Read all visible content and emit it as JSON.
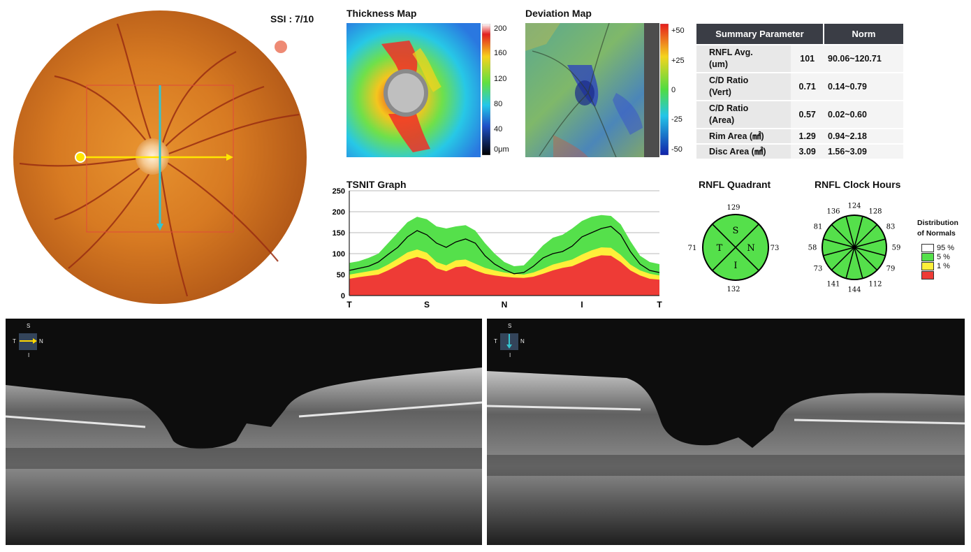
{
  "header": {
    "ssi": "SSI : 7/10"
  },
  "thickness_map": {
    "title": "Thickness Map",
    "colorbar": [
      "200",
      "160",
      "120",
      "80",
      "40",
      "0μm"
    ]
  },
  "deviation_map": {
    "title": "Deviation Map",
    "colorbar": [
      "+50",
      "+25",
      "0",
      "-25",
      "-50"
    ]
  },
  "summary": {
    "headers": [
      "Summary Parameter",
      "Norm"
    ],
    "rows": [
      {
        "param_line1": "RNFL Avg.",
        "param_line2": "(um)",
        "value": "101",
        "norm": "90.06~120.71"
      },
      {
        "param_line1": "C/D Ratio",
        "param_line2": "(Vert)",
        "value": "0.71",
        "norm": "0.14~0.79"
      },
      {
        "param_line1": "C/D Ratio",
        "param_line2": "(Area)",
        "value": "0.57",
        "norm": "0.02~0.60"
      },
      {
        "param_line1": "Rim Area (㎟)",
        "param_line2": "",
        "value": "1.29",
        "norm": "0.94~2.18"
      },
      {
        "param_line1": "Disc Area (㎟)",
        "param_line2": "",
        "value": "3.09",
        "norm": "1.56~3.09"
      }
    ]
  },
  "chart_data": {
    "type": "line",
    "title": "TSNIT Graph",
    "x_ticks": [
      "T",
      "S",
      "N",
      "I",
      "T"
    ],
    "y_ticks": [
      250,
      200,
      150,
      100,
      50,
      0
    ],
    "ylim": [
      0,
      250
    ],
    "grid": true,
    "x": [
      0,
      8,
      16,
      24,
      32,
      40,
      48,
      56,
      64,
      72,
      80,
      88,
      96,
      104,
      112,
      120,
      128,
      136,
      144,
      152,
      160,
      168,
      176,
      184,
      192,
      200,
      208,
      216,
      224,
      232,
      240,
      248,
      256
    ],
    "series": [
      {
        "values": [
          60,
          65,
          70,
          80,
          98,
          115,
          140,
          155,
          145,
          125,
          115,
          128,
          135,
          125,
          95,
          75,
          62,
          52,
          55,
          70,
          90,
          100,
          105,
          118,
          140,
          150,
          160,
          165,
          145,
          105,
          75,
          60,
          55
        ]
      }
    ],
    "bands": {
      "p1": [
        40,
        44,
        47,
        50,
        60,
        72,
        85,
        92,
        85,
        65,
        58,
        68,
        70,
        60,
        52,
        48,
        45,
        43,
        42,
        45,
        52,
        60,
        66,
        70,
        80,
        90,
        96,
        95,
        80,
        60,
        48,
        40,
        38
      ],
      "p5": [
        50,
        54,
        58,
        62,
        74,
        88,
        103,
        110,
        102,
        80,
        72,
        84,
        86,
        76,
        66,
        60,
        55,
        52,
        50,
        55,
        64,
        74,
        80,
        86,
        98,
        108,
        115,
        114,
        97,
        74,
        60,
        52,
        48
      ],
      "p95": [
        78,
        82,
        90,
        100,
        125,
        150,
        175,
        188,
        182,
        165,
        160,
        165,
        168,
        155,
        125,
        100,
        80,
        70,
        72,
        95,
        120,
        138,
        145,
        160,
        178,
        188,
        192,
        190,
        170,
        130,
        95,
        80,
        75
      ]
    },
    "band_colors": {
      "p1": "#ee3b36",
      "p5": "#ffef3a",
      "p95": "#55e04b",
      "normal": "#ffffff"
    }
  },
  "quadrant": {
    "title": "RNFL Quadrant",
    "values": {
      "S": "129",
      "N": "73",
      "I": "132",
      "T": "71"
    },
    "labels": {
      "S": "S",
      "N": "N",
      "I": "I",
      "T": "T"
    }
  },
  "clock_hours": {
    "title": "RNFL Clock Hours",
    "values": [
      "124",
      "128",
      "83",
      "59",
      "79",
      "112",
      "144",
      "141",
      "73",
      "58",
      "81",
      "136"
    ]
  },
  "legend": {
    "title_line1": "Distribution",
    "title_line2": "of Normals",
    "items": [
      {
        "label": "95 %",
        "color": "#ffffff"
      },
      {
        "label": "5 %",
        "color": "#55e04b"
      },
      {
        "label": "1 %",
        "color": "#ffef3a"
      },
      {
        "label": "",
        "color": "#ee3b36"
      }
    ]
  },
  "oct_horizontal": {
    "orientation": {
      "S": "S",
      "T": "T",
      "N": "N",
      "I": "I"
    }
  },
  "oct_vertical": {
    "orientation": {
      "S": "S",
      "T": "T",
      "N": "N",
      "I": "I"
    }
  }
}
